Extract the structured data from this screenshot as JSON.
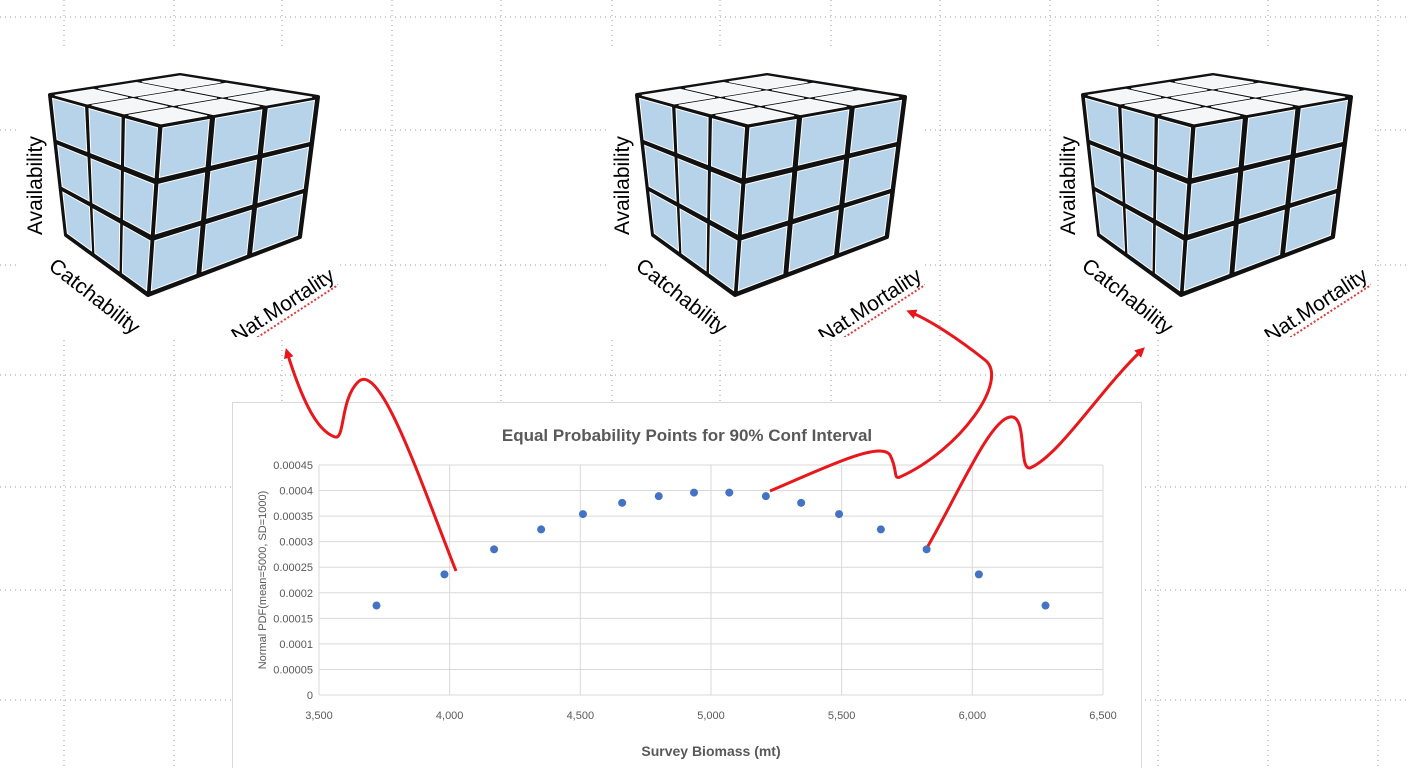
{
  "cubes": [
    {
      "axis_top": "Availability",
      "axis_left": "Catchability",
      "axis_right": "Nat.Mortality"
    },
    {
      "axis_top": "Availability",
      "axis_left": "Catchability",
      "axis_right": "Nat.Mortality"
    },
    {
      "axis_top": "Availability",
      "axis_left": "Catchability",
      "axis_right": "Nat.Mortality"
    }
  ],
  "colors": {
    "marker": "#4472c4",
    "arrow": "#e8171c",
    "cube_face": "#b7d3ea",
    "cube_top": "#f4f6f8",
    "grid": "#d9d9d9",
    "text": "#595959"
  },
  "chart_data": {
    "type": "scatter",
    "title": "Equal Probability Points for 90% Conf Interval",
    "xlabel": "Survey Biomass (mt)",
    "ylabel": "Normal PDF(mean=5000, SD=1000)",
    "xlim": [
      3500,
      6500
    ],
    "ylim": [
      0,
      0.00045
    ],
    "x_ticks": [
      "3,500",
      "4,000",
      "4,500",
      "5,000",
      "5,500",
      "6,000",
      "6,500"
    ],
    "y_ticks": [
      "0",
      "0.00005",
      "0.0001",
      "0.00015",
      "0.0002",
      "0.00025",
      "0.0003",
      "0.00035",
      "0.0004",
      "0.00045"
    ],
    "grid": true,
    "points": [
      {
        "x": 3720,
        "y": 0.000175
      },
      {
        "x": 3980,
        "y": 0.000236
      },
      {
        "x": 4170,
        "y": 0.000285
      },
      {
        "x": 4350,
        "y": 0.000324
      },
      {
        "x": 4510,
        "y": 0.000354
      },
      {
        "x": 4660,
        "y": 0.000376
      },
      {
        "x": 4800,
        "y": 0.000389
      },
      {
        "x": 4935,
        "y": 0.000396
      },
      {
        "x": 5070,
        "y": 0.000396
      },
      {
        "x": 5210,
        "y": 0.000389
      },
      {
        "x": 5345,
        "y": 0.000376
      },
      {
        "x": 5490,
        "y": 0.000354
      },
      {
        "x": 5650,
        "y": 0.000324
      },
      {
        "x": 5825,
        "y": 0.000285
      },
      {
        "x": 6025,
        "y": 0.000236
      },
      {
        "x": 6280,
        "y": 0.000175
      }
    ]
  }
}
